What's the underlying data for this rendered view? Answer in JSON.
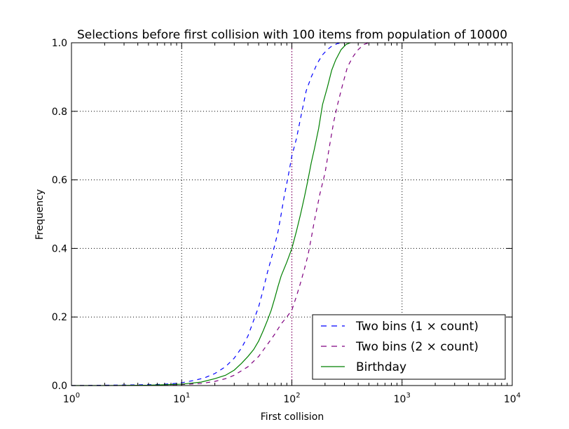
{
  "chart_data": {
    "type": "line",
    "title": "Selections before first collision with 100 items from population of 10000",
    "xlabel": "First collision",
    "ylabel": "Frequency",
    "x_scale": "log",
    "xlim": [
      1,
      10000
    ],
    "ylim": [
      0,
      1.0
    ],
    "grid": true,
    "legend_position": "lower-right",
    "x_ticks": [
      {
        "value": 1,
        "base": "10",
        "exp": "0"
      },
      {
        "value": 10,
        "base": "10",
        "exp": "1"
      },
      {
        "value": 100,
        "base": "10",
        "exp": "2"
      },
      {
        "value": 1000,
        "base": "10",
        "exp": "3"
      },
      {
        "value": 10000,
        "base": "10",
        "exp": "4"
      }
    ],
    "y_ticks": [
      {
        "value": 0,
        "label": "0.0"
      },
      {
        "value": 0.2,
        "label": "0.2"
      },
      {
        "value": 0.4,
        "label": "0.4"
      },
      {
        "value": 0.6,
        "label": "0.6"
      },
      {
        "value": 0.8,
        "label": "0.8"
      },
      {
        "value": 1.0,
        "label": "1.0"
      }
    ],
    "reference_line": {
      "x": 100,
      "color": "#800060"
    },
    "series": [
      {
        "name": "Two bins (1 × count)",
        "color": "#0000ff",
        "dash": "dashed",
        "points": [
          [
            1,
            0.0
          ],
          [
            2,
            0.001
          ],
          [
            4,
            0.002
          ],
          [
            6,
            0.003
          ],
          [
            8,
            0.005
          ],
          [
            10,
            0.008
          ],
          [
            13,
            0.015
          ],
          [
            16,
            0.022
          ],
          [
            20,
            0.035
          ],
          [
            25,
            0.055
          ],
          [
            30,
            0.08
          ],
          [
            35,
            0.11
          ],
          [
            40,
            0.145
          ],
          [
            45,
            0.19
          ],
          [
            50,
            0.23
          ],
          [
            55,
            0.28
          ],
          [
            60,
            0.33
          ],
          [
            65,
            0.37
          ],
          [
            70,
            0.41
          ],
          [
            75,
            0.45
          ],
          [
            80,
            0.5
          ],
          [
            85,
            0.55
          ],
          [
            90,
            0.59
          ],
          [
            95,
            0.63
          ],
          [
            100,
            0.67
          ],
          [
            110,
            0.72
          ],
          [
            120,
            0.78
          ],
          [
            135,
            0.86
          ],
          [
            150,
            0.9
          ],
          [
            170,
            0.94
          ],
          [
            190,
            0.965
          ],
          [
            210,
            0.98
          ],
          [
            230,
            0.99
          ],
          [
            260,
            0.998
          ],
          [
            300,
            1.0
          ]
        ]
      },
      {
        "name": "Two bins (2 × count)",
        "color": "#800080",
        "dash": "dashed",
        "points": [
          [
            1,
            0.0
          ],
          [
            3,
            0.0
          ],
          [
            6,
            0.001
          ],
          [
            10,
            0.003
          ],
          [
            15,
            0.006
          ],
          [
            20,
            0.012
          ],
          [
            25,
            0.02
          ],
          [
            30,
            0.03
          ],
          [
            40,
            0.055
          ],
          [
            50,
            0.085
          ],
          [
            60,
            0.12
          ],
          [
            70,
            0.15
          ],
          [
            80,
            0.18
          ],
          [
            90,
            0.2
          ],
          [
            100,
            0.22
          ],
          [
            110,
            0.26
          ],
          [
            120,
            0.3
          ],
          [
            130,
            0.34
          ],
          [
            140,
            0.38
          ],
          [
            150,
            0.43
          ],
          [
            160,
            0.48
          ],
          [
            180,
            0.56
          ],
          [
            200,
            0.62
          ],
          [
            220,
            0.7
          ],
          [
            240,
            0.77
          ],
          [
            260,
            0.82
          ],
          [
            290,
            0.88
          ],
          [
            320,
            0.93
          ],
          [
            360,
            0.96
          ],
          [
            400,
            0.98
          ],
          [
            450,
            0.995
          ],
          [
            500,
            1.0
          ]
        ]
      },
      {
        "name": "Birthday",
        "color": "#008000",
        "dash": "solid",
        "points": [
          [
            1,
            0.0
          ],
          [
            2,
            0.0
          ],
          [
            5,
            0.001
          ],
          [
            10,
            0.004
          ],
          [
            15,
            0.01
          ],
          [
            20,
            0.02
          ],
          [
            25,
            0.03
          ],
          [
            30,
            0.045
          ],
          [
            35,
            0.065
          ],
          [
            40,
            0.085
          ],
          [
            45,
            0.105
          ],
          [
            50,
            0.13
          ],
          [
            55,
            0.16
          ],
          [
            60,
            0.19
          ],
          [
            65,
            0.22
          ],
          [
            70,
            0.255
          ],
          [
            75,
            0.29
          ],
          [
            80,
            0.32
          ],
          [
            90,
            0.36
          ],
          [
            100,
            0.4
          ],
          [
            110,
            0.45
          ],
          [
            120,
            0.5
          ],
          [
            130,
            0.55
          ],
          [
            140,
            0.6
          ],
          [
            150,
            0.65
          ],
          [
            160,
            0.69
          ],
          [
            175,
            0.75
          ],
          [
            190,
            0.82
          ],
          [
            210,
            0.87
          ],
          [
            230,
            0.92
          ],
          [
            250,
            0.95
          ],
          [
            280,
            0.98
          ],
          [
            310,
            0.995
          ],
          [
            340,
            1.0
          ]
        ]
      }
    ]
  }
}
